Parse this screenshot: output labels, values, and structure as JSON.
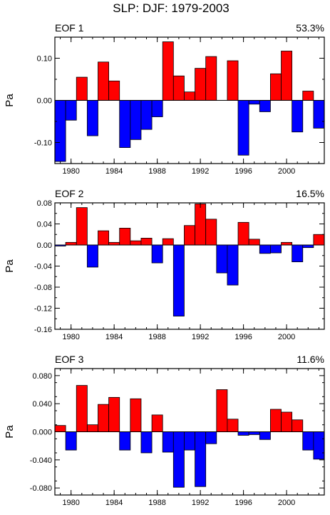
{
  "title": "SLP: DJF: 1979-2003",
  "chart_data": [
    {
      "type": "bar",
      "panel_label": "EOF 1",
      "variance": "53.3%",
      "ylabel": "Pa",
      "ylim": [
        -0.15,
        0.15
      ],
      "yticks": [
        -0.1,
        0.0,
        0.1
      ],
      "ytick_labels": [
        "-0.10",
        "0.00",
        "0.10"
      ],
      "xlim": [
        1978.5,
        2003.5
      ],
      "xticks": [
        1980,
        1984,
        1988,
        1992,
        1996,
        2000
      ],
      "xtick_labels": [
        "1980",
        "1984",
        "1988",
        "1992",
        "1996",
        "2000"
      ],
      "colors": {
        "positive": "#ff0000",
        "negative": "#0000ff"
      },
      "x": [
        1979,
        1980,
        1981,
        1982,
        1983,
        1984,
        1985,
        1986,
        1987,
        1988,
        1989,
        1990,
        1991,
        1992,
        1993,
        1994,
        1995,
        1996,
        1997,
        1998,
        1999,
        2000,
        2001,
        2002,
        2003
      ],
      "values": [
        -0.145,
        -0.047,
        0.055,
        -0.084,
        0.091,
        0.046,
        -0.112,
        -0.093,
        -0.069,
        -0.039,
        0.139,
        0.058,
        0.02,
        0.076,
        0.104,
        0.0,
        0.094,
        -0.13,
        -0.009,
        -0.027,
        0.063,
        0.117,
        -0.075,
        0.022,
        -0.066
      ]
    },
    {
      "type": "bar",
      "panel_label": "EOF 2",
      "variance": "16.5%",
      "ylabel": "Pa",
      "ylim": [
        -0.16,
        0.08
      ],
      "yticks": [
        -0.16,
        -0.12,
        -0.08,
        -0.04,
        0.0,
        0.04,
        0.08
      ],
      "ytick_labels": [
        "-0.16",
        "-0.12",
        "-0.08",
        "-0.04",
        "0.00",
        "0.04",
        "0.08"
      ],
      "xlim": [
        1978.5,
        2003.5
      ],
      "xticks": [
        1980,
        1984,
        1988,
        1992,
        1996,
        2000
      ],
      "xtick_labels": [
        "1980",
        "1984",
        "1988",
        "1992",
        "1996",
        "2000"
      ],
      "colors": {
        "positive": "#ff0000",
        "negative": "#0000ff"
      },
      "x": [
        1979,
        1980,
        1981,
        1982,
        1983,
        1984,
        1985,
        1986,
        1987,
        1988,
        1989,
        1990,
        1991,
        1992,
        1993,
        1994,
        1995,
        1996,
        1997,
        1998,
        1999,
        2000,
        2001,
        2002,
        2003
      ],
      "values": [
        -0.002,
        0.005,
        0.071,
        -0.042,
        0.027,
        0.005,
        0.032,
        0.008,
        0.013,
        -0.034,
        0.012,
        -0.135,
        0.037,
        0.078,
        0.049,
        -0.053,
        -0.076,
        0.043,
        0.011,
        -0.016,
        -0.015,
        0.005,
        -0.032,
        -0.005,
        0.02
      ]
    },
    {
      "type": "bar",
      "panel_label": "EOF 3",
      "variance": "11.6%",
      "ylabel": "Pa",
      "ylim": [
        -0.09,
        0.09
      ],
      "yticks": [
        -0.08,
        -0.04,
        0.0,
        0.04,
        0.08
      ],
      "ytick_labels": [
        "-0.080",
        "-0.040",
        "0.000",
        "0.040",
        "0.080"
      ],
      "xlim": [
        1978.5,
        2003.5
      ],
      "xticks": [
        1980,
        1984,
        1988,
        1992,
        1996,
        2000
      ],
      "xtick_labels": [
        "1980",
        "1984",
        "1988",
        "1992",
        "1996",
        "2000"
      ],
      "colors": {
        "positive": "#ff0000",
        "negative": "#0000ff"
      },
      "x": [
        1979,
        1980,
        1981,
        1982,
        1983,
        1984,
        1985,
        1986,
        1987,
        1988,
        1989,
        1990,
        1991,
        1992,
        1993,
        1994,
        1995,
        1996,
        1997,
        1998,
        1999,
        2000,
        2001,
        2002,
        2003
      ],
      "values": [
        0.009,
        -0.026,
        0.066,
        0.01,
        0.039,
        0.049,
        -0.026,
        0.047,
        -0.03,
        0.024,
        -0.029,
        -0.079,
        -0.026,
        -0.078,
        -0.017,
        0.06,
        0.018,
        -0.005,
        -0.004,
        -0.011,
        0.032,
        0.028,
        0.017,
        -0.026,
        -0.039
      ]
    }
  ]
}
